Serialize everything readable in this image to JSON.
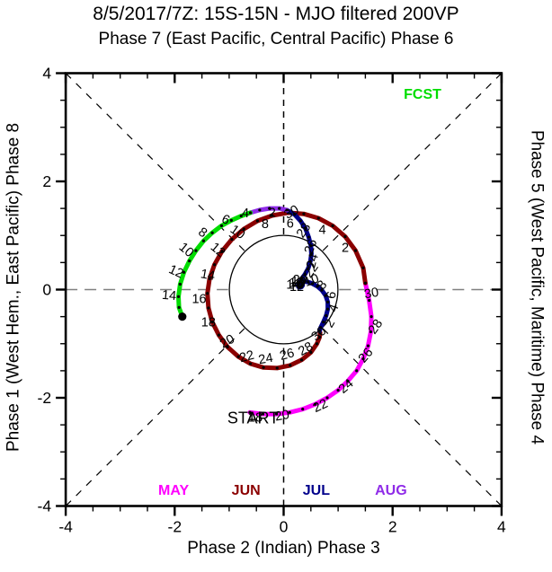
{
  "title": "8/5/2017/7Z: 15S-15N - MJO filtered 200VP",
  "subtitle": "Phase 7 (East Pacific, Central Pacific) Phase 6",
  "axis_labels": {
    "bottom": "Phase 2 (Indian) Phase 3",
    "left": "Phase 1 (West Hem., East Pacific) Phase 8",
    "right": "Phase 5 (West Pacific, Maritime) Phase 4"
  },
  "chart_data": {
    "type": "line",
    "title": "8/5/2017/7Z: 15S-15N - MJO filtered 200VP",
    "subtitle": "Phase 7 (East Pacific, Central Pacific) Phase 6",
    "xlabel": "Phase 2 (Indian) Phase 3",
    "ylabel_left": "Phase 1 (West Hem., East Pacific) Phase 8",
    "ylabel_right": "Phase 5 (West Pacific, Maritime) Phase 4",
    "xlim": [
      -4,
      4
    ],
    "ylim": [
      -4,
      4
    ],
    "major_ticks": [
      -4,
      -2,
      0,
      2,
      4
    ],
    "minor_step": 0.5,
    "x_tick_labels": [
      "-4",
      "-2",
      "0",
      "2",
      "4"
    ],
    "y_tick_labels": [
      "-4",
      "-2",
      "0",
      "2",
      "4"
    ],
    "unit_circle_radius": 1,
    "colors": {
      "may": "#FF00FF",
      "jun": "#8B0000",
      "jul": "#00008B",
      "aug": "#8F2BE8",
      "fcst": "#00DD00",
      "guide_gray": "#808080",
      "guide_black": "#000000"
    },
    "annotations": [
      {
        "text": "START",
        "x": -0.56,
        "y": -2.37,
        "color": "#000000",
        "size": 18,
        "bold": false
      },
      {
        "text": "FCST",
        "x": 2.55,
        "y": 3.63,
        "color": "#00DD00",
        "size": 16,
        "bold": true
      }
    ],
    "month_labels": [
      {
        "text": "MAY",
        "color": "#FF00FF",
        "x": -2.02,
        "y": -3.79
      },
      {
        "text": "JUN",
        "color": "#8B0000",
        "x": -0.69,
        "y": -3.79
      },
      {
        "text": "JUL",
        "color": "#00008B",
        "x": 0.6,
        "y": -3.79
      },
      {
        "text": "AUG",
        "color": "#8F2BE8",
        "x": 1.97,
        "y": -3.79
      }
    ],
    "series": [
      {
        "name": "MAY",
        "color": "#FF00FF",
        "points": [
          [
            -0.62,
            -2.27
          ],
          [
            -0.38,
            -2.3
          ],
          [
            -0.13,
            -2.3
          ],
          [
            0.11,
            -2.27
          ],
          [
            0.35,
            -2.21
          ],
          [
            0.58,
            -2.12
          ],
          [
            0.8,
            -2.0
          ],
          [
            1.0,
            -1.86
          ],
          [
            1.18,
            -1.69
          ],
          [
            1.34,
            -1.5
          ],
          [
            1.46,
            -1.28
          ],
          [
            1.55,
            -1.04
          ],
          [
            1.6,
            -0.78
          ],
          [
            1.61,
            -0.5
          ],
          [
            1.57,
            -0.2
          ],
          [
            1.5,
            0.12
          ]
        ],
        "day_labels": [
          {
            "t": "18",
            "x": -0.52,
            "y": -2.36,
            "r": 0
          },
          {
            "t": "20",
            "x": -0.03,
            "y": -2.32,
            "r": -10
          },
          {
            "t": "22",
            "x": 0.67,
            "y": -2.14,
            "r": -25
          },
          {
            "t": "24",
            "x": 1.14,
            "y": -1.78,
            "r": -40
          },
          {
            "t": "26",
            "x": 1.5,
            "y": -1.21,
            "r": -50
          },
          {
            "t": "28",
            "x": 1.68,
            "y": -0.68,
            "r": -55
          },
          {
            "t": "30",
            "x": 1.61,
            "y": -0.06,
            "r": -10
          }
        ]
      },
      {
        "name": "JUN",
        "color": "#8B0000",
        "points": [
          [
            1.5,
            0.12
          ],
          [
            1.46,
            0.4
          ],
          [
            1.32,
            0.72
          ],
          [
            1.13,
            0.98
          ],
          [
            0.9,
            1.18
          ],
          [
            0.64,
            1.32
          ],
          [
            0.37,
            1.4
          ],
          [
            0.08,
            1.42
          ],
          [
            -0.21,
            1.37
          ],
          [
            -0.48,
            1.27
          ],
          [
            -0.73,
            1.12
          ],
          [
            -0.95,
            0.93
          ],
          [
            -1.13,
            0.71
          ],
          [
            -1.27,
            0.46
          ],
          [
            -1.36,
            0.2
          ],
          [
            -1.4,
            -0.07
          ],
          [
            -1.38,
            -0.34
          ],
          [
            -1.31,
            -0.6
          ],
          [
            -1.19,
            -0.84
          ],
          [
            -1.03,
            -1.06
          ],
          [
            -0.83,
            -1.24
          ],
          [
            -0.61,
            -1.37
          ],
          [
            -0.37,
            -1.44
          ],
          [
            -0.12,
            -1.45
          ],
          [
            0.12,
            -1.4
          ],
          [
            0.33,
            -1.3
          ],
          [
            0.5,
            -1.16
          ],
          [
            0.61,
            -1.0
          ],
          [
            0.66,
            -0.88
          ],
          [
            0.67,
            -0.8
          ],
          [
            0.66,
            -0.76
          ]
        ],
        "day_labels": [
          {
            "t": "2",
            "x": 1.13,
            "y": 0.78,
            "r": 0
          },
          {
            "t": "4",
            "x": 0.71,
            "y": 1.11,
            "r": 0
          },
          {
            "t": "6",
            "x": 0.12,
            "y": 1.23,
            "r": 0
          },
          {
            "t": "8",
            "x": -0.34,
            "y": 1.22,
            "r": 0
          },
          {
            "t": "10",
            "x": -0.84,
            "y": 1.07,
            "r": 35
          },
          {
            "t": "12",
            "x": -1.2,
            "y": 0.74,
            "r": 40
          },
          {
            "t": "14",
            "x": -1.39,
            "y": 0.28,
            "r": 10
          },
          {
            "t": "16",
            "x": -1.55,
            "y": -0.17,
            "r": 0
          },
          {
            "t": "18",
            "x": -1.38,
            "y": -0.6,
            "r": 0
          },
          {
            "t": "20",
            "x": -1.04,
            "y": -0.95,
            "r": -30
          },
          {
            "t": "22",
            "x": -0.68,
            "y": -1.23,
            "r": -15
          },
          {
            "t": "24",
            "x": -0.33,
            "y": -1.27,
            "r": -10
          },
          {
            "t": "26",
            "x": 0.06,
            "y": -1.19,
            "r": -15
          },
          {
            "t": "28",
            "x": 0.4,
            "y": -1.09,
            "r": -30
          },
          {
            "t": "30",
            "x": 0.64,
            "y": -0.81,
            "r": -40
          }
        ]
      },
      {
        "name": "JUL",
        "color": "#00008B",
        "points": [
          [
            0.66,
            -0.76
          ],
          [
            0.68,
            -0.7
          ],
          [
            0.73,
            -0.6
          ],
          [
            0.78,
            -0.48
          ],
          [
            0.81,
            -0.36
          ],
          [
            0.81,
            -0.23
          ],
          [
            0.77,
            -0.11
          ],
          [
            0.7,
            -0.01
          ],
          [
            0.62,
            0.06
          ],
          [
            0.53,
            0.11
          ],
          [
            0.45,
            0.14
          ],
          [
            0.38,
            0.15
          ],
          [
            0.32,
            0.14
          ],
          [
            0.28,
            0.11
          ],
          [
            0.26,
            0.08
          ],
          [
            0.27,
            0.05
          ],
          [
            0.3,
            0.04
          ],
          [
            0.33,
            0.05
          ],
          [
            0.35,
            0.08
          ],
          [
            0.34,
            0.12
          ],
          [
            0.31,
            0.15
          ],
          [
            0.33,
            0.2
          ],
          [
            0.39,
            0.28
          ],
          [
            0.45,
            0.39
          ],
          [
            0.49,
            0.52
          ],
          [
            0.51,
            0.66
          ],
          [
            0.5,
            0.81
          ],
          [
            0.46,
            0.97
          ],
          [
            0.4,
            1.13
          ],
          [
            0.31,
            1.27
          ],
          [
            0.2,
            1.39
          ],
          [
            0.06,
            1.47
          ]
        ],
        "day_labels": [
          {
            "t": "2",
            "x": 0.84,
            "y": -0.62,
            "r": -60
          },
          {
            "t": "4",
            "x": 0.91,
            "y": -0.34,
            "r": -70
          },
          {
            "t": "6",
            "x": 0.87,
            "y": -0.1,
            "r": -80
          },
          {
            "t": "8",
            "x": 0.7,
            "y": 0.09,
            "r": -50
          },
          {
            "t": "10",
            "x": 0.51,
            "y": 0.18,
            "r": -20
          },
          {
            "t": "12",
            "x": 0.24,
            "y": 0.06,
            "r": 0
          },
          {
            "t": "14",
            "x": 0.18,
            "y": 0.1,
            "r": 0
          },
          {
            "t": "16",
            "x": 0.23,
            "y": 0.13,
            "r": 0
          },
          {
            "t": "18",
            "x": 0.27,
            "y": 0.16,
            "r": 0
          },
          {
            "t": "20",
            "x": 0.3,
            "y": 0.19,
            "r": 0
          },
          {
            "t": "22",
            "x": 0.5,
            "y": 0.36,
            "r": -55
          },
          {
            "t": "24",
            "x": 0.52,
            "y": 0.53,
            "r": -75
          },
          {
            "t": "26",
            "x": 0.49,
            "y": 0.8,
            "r": -70
          },
          {
            "t": "28",
            "x": 0.36,
            "y": 1.1,
            "r": -55
          },
          {
            "t": "30",
            "x": 0.14,
            "y": 1.44,
            "r": -30
          }
        ]
      },
      {
        "name": "AUG",
        "color": "#8F2BE8",
        "points": [
          [
            0.06,
            1.47
          ],
          [
            -0.08,
            1.5
          ],
          [
            -0.26,
            1.5
          ],
          [
            -0.44,
            1.47
          ],
          [
            -0.61,
            1.42
          ]
        ],
        "day_labels": [
          {
            "t": "2",
            "x": -0.21,
            "y": 1.43,
            "r": 0
          },
          {
            "t": "4",
            "x": -0.7,
            "y": 1.42,
            "r": 0
          }
        ]
      },
      {
        "name": "FCST",
        "color": "#00DD00",
        "end_dot": true,
        "points": [
          [
            -0.61,
            1.42
          ],
          [
            -0.78,
            1.36
          ],
          [
            -0.96,
            1.28
          ],
          [
            -1.14,
            1.18
          ],
          [
            -1.31,
            1.05
          ],
          [
            -1.47,
            0.9
          ],
          [
            -1.61,
            0.72
          ],
          [
            -1.73,
            0.53
          ],
          [
            -1.83,
            0.32
          ],
          [
            -1.9,
            0.1
          ],
          [
            -1.93,
            -0.13
          ],
          [
            -1.92,
            -0.33
          ],
          [
            -1.86,
            -0.5
          ]
        ],
        "day_labels": [
          {
            "t": "6",
            "x": -1.06,
            "y": 1.3,
            "r": 25
          },
          {
            "t": "8",
            "x": -1.48,
            "y": 1.06,
            "r": 35
          },
          {
            "t": "10",
            "x": -1.78,
            "y": 0.74,
            "r": 40
          },
          {
            "t": "12",
            "x": -1.97,
            "y": 0.34,
            "r": 25
          },
          {
            "t": "14",
            "x": -2.1,
            "y": -0.1,
            "r": 5
          }
        ]
      }
    ]
  }
}
